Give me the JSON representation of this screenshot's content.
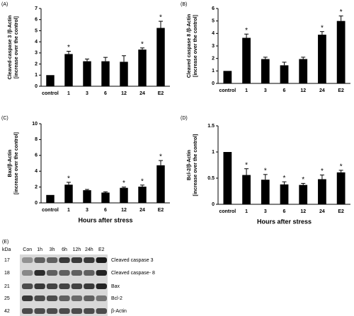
{
  "chart_data": [
    {
      "type": "bar",
      "panel_label": "(A)",
      "ylabel": [
        "Cleaved-caspase 3 /β-Actin",
        "[increase over the control]"
      ],
      "categories": [
        "control",
        "1",
        "3",
        "6",
        "12",
        "24",
        "E2"
      ],
      "values": [
        1,
        2.9,
        2.25,
        2.25,
        2.2,
        3.3,
        5.25
      ],
      "errors": [
        0,
        0.25,
        0.2,
        0.35,
        0.55,
        0.15,
        0.6
      ],
      "annotations": [
        null,
        "*",
        null,
        null,
        null,
        "*",
        "*"
      ],
      "color": "#000000",
      "ylim": [
        0,
        7
      ],
      "yticks": [
        0,
        1,
        2,
        3,
        4,
        5,
        6,
        7
      ]
    },
    {
      "type": "bar",
      "panel_label": "(B)",
      "ylabel": [
        "Cleaved caspase 8 /β-Actin",
        "[increase over the control]"
      ],
      "categories": [
        "control",
        "1",
        "3",
        "6",
        "12",
        "24",
        "E2"
      ],
      "values": [
        1,
        3.65,
        1.95,
        1.45,
        1.95,
        3.9,
        5.0
      ],
      "errors": [
        0,
        0.3,
        0.15,
        0.25,
        0.15,
        0.25,
        0.4
      ],
      "annotations": [
        null,
        "*",
        null,
        null,
        null,
        "*",
        "*"
      ],
      "color": "#000000",
      "ylim": [
        0,
        6
      ],
      "yticks": [
        0,
        1,
        2,
        3,
        4,
        5,
        6
      ]
    },
    {
      "type": "bar",
      "panel_label": "(C)",
      "ylabel": [
        "Bax/β-Actin",
        "[increase over the control]"
      ],
      "xlabel": "Hours after stress",
      "categories": [
        "control",
        "1",
        "3",
        "6",
        "12",
        "24",
        "E2"
      ],
      "values": [
        1,
        2.3,
        1.6,
        1.3,
        1.9,
        2.05,
        4.75
      ],
      "errors": [
        0,
        0.3,
        0.1,
        0.1,
        0.1,
        0.2,
        0.6
      ],
      "annotations": [
        null,
        "*",
        null,
        null,
        "*",
        "*",
        "*"
      ],
      "color": "#000000",
      "ylim": [
        0,
        10
      ],
      "yticks": [
        0,
        2,
        4,
        6,
        8,
        10
      ]
    },
    {
      "type": "bar",
      "panel_label": "(D)",
      "ylabel": [
        "Bcl-2/β-Actin",
        "[increase over the control]"
      ],
      "xlabel": "Hours after stress",
      "categories": [
        "control",
        "1",
        "3",
        "6",
        "12",
        "24",
        "E2"
      ],
      "values": [
        1,
        0.56,
        0.47,
        0.38,
        0.37,
        0.48,
        0.61
      ],
      "errors": [
        0,
        0.12,
        0.1,
        0.05,
        0.03,
        0.08,
        0.04
      ],
      "annotations": [
        null,
        "*",
        "*",
        "*",
        "*",
        "*",
        "*"
      ],
      "color": "#000000",
      "ylim": [
        0,
        1.5
      ],
      "yticks": [
        0,
        0.5,
        1,
        1.5
      ]
    }
  ],
  "blot": {
    "panel_label": "(E)",
    "unit": "kDa",
    "lanes": [
      "Con",
      "1h",
      "3h",
      "6h",
      "12h",
      "24h",
      "E2"
    ],
    "rows": [
      {
        "kda": 17,
        "label": "Cleaved caspase 3"
      },
      {
        "kda": 18,
        "label": "Cleaved caspase- 8"
      },
      {
        "kda": 21,
        "label": "Bax"
      },
      {
        "kda": 25,
        "label": "Bcl-2"
      },
      {
        "kda": 42,
        "label": "β-Actin"
      }
    ]
  }
}
